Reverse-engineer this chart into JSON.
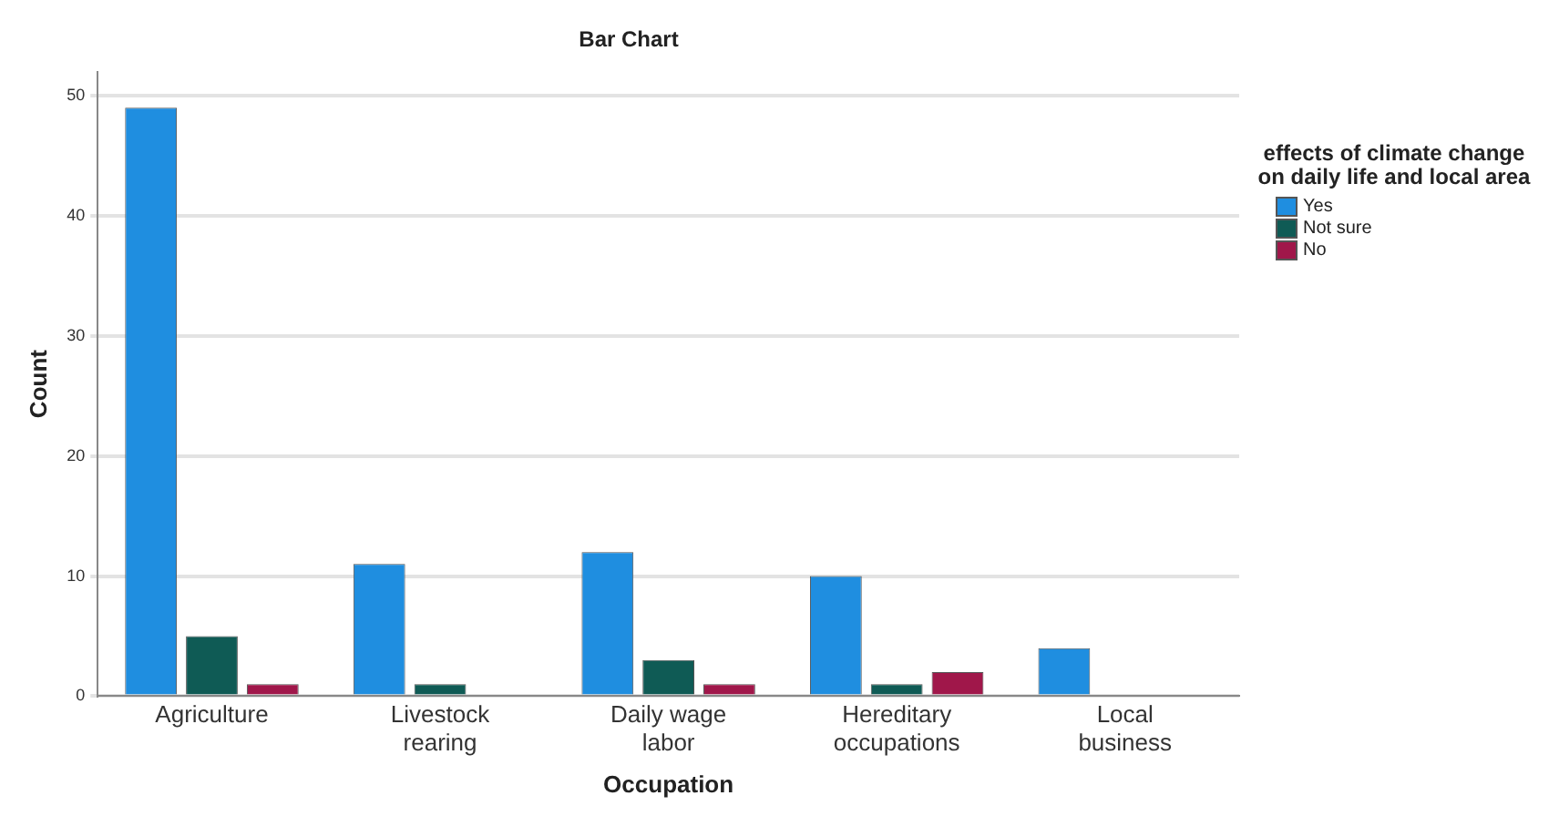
{
  "chart_data": {
    "type": "bar",
    "title": "Bar Chart",
    "xlabel": "Occupation",
    "ylabel": "Count",
    "legend_title": "effects of climate change on daily life and local area",
    "categories": [
      "Agriculture",
      "Livestock rearing",
      "Daily wage labor",
      "Hereditary occupations",
      "Local business"
    ],
    "series": [
      {
        "name": "Yes",
        "color": "#1f8ee0",
        "values": [
          49,
          11,
          12,
          10,
          4
        ]
      },
      {
        "name": "Not sure",
        "color": "#0f5b55",
        "values": [
          5,
          1,
          3,
          1,
          0
        ]
      },
      {
        "name": "No",
        "color": "#a0174a",
        "values": [
          1,
          0,
          1,
          2,
          0
        ]
      }
    ],
    "ylim": [
      0,
      52
    ],
    "yticks": [
      0,
      10,
      20,
      30,
      40,
      50
    ],
    "grid": "y",
    "legend": "right"
  }
}
